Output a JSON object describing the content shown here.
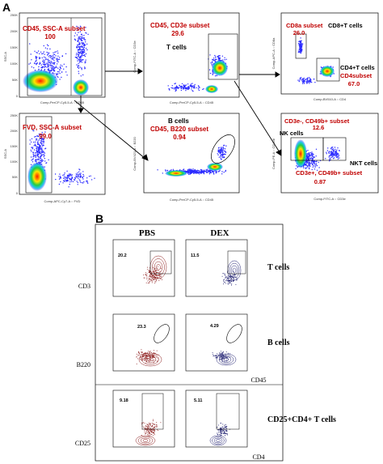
{
  "panel_a": {
    "letter": "A",
    "plots": [
      {
        "gate_label": "CD45, SSC-A subset",
        "gate_value": "100",
        "xaxis": "Comp-PerCP-Cy5-5-A :: CD45",
        "yaxis": "SSC-A"
      },
      {
        "gate_label": "FVD, SSC-A subset",
        "gate_value": "99.0",
        "xaxis": "Comp-APC-Cy7-A :: FVD",
        "yaxis": "SSC-A"
      },
      {
        "gate_label": "CD45, CD3e subset",
        "gate_value": "29.6",
        "pop_label": "T cells",
        "xaxis": "Comp-PerCP-Cy5-5-A :: CD45",
        "yaxis": "Comp-FITC-A :: CD3e"
      },
      {
        "gate_label": "B cells",
        "gate_sub": "CD45, B220 subset",
        "gate_value": "0.94",
        "xaxis": "Comp-PerCP-Cy5-5-A :: CD45",
        "yaxis": "Comp-BV421-A :: B220"
      },
      {
        "gate_label": "CD8a subset",
        "gate_value": "26.0",
        "pop_label": "CD8+T cells",
        "pop_label2": "CD4+T cells",
        "gate_label2": "CD4subset",
        "gate_value2": "67.0",
        "xaxis": "Comp-BV510-A :: CD4",
        "yaxis": "Comp-APC-A :: CD8a"
      },
      {
        "gate_label": "CD3e-, CD49b+ subset",
        "gate_value": "12.6",
        "pop_label": "NK cells",
        "pop_label2": "NKT cells",
        "gate_label2": "CD3e+, CD49b+ subset",
        "gate_value2": "0.87",
        "xaxis": "Comp-FITC-A :: CD3e",
        "yaxis": "Comp-PE-A :: CD49b"
      }
    ],
    "y_ticks_ssc": [
      "250K",
      "200K",
      "150K",
      "100K",
      "50K",
      "0"
    ],
    "log_ticks": [
      "-10³",
      "0",
      "10³",
      "10⁴",
      "10⁵"
    ]
  },
  "panel_b": {
    "letter": "B",
    "col_pbs": "PBS",
    "col_dex": "DEX",
    "rows": [
      {
        "label": "T cells",
        "ylabel": "CD3",
        "pbs_value": "20.2",
        "dex_value": "11.5"
      },
      {
        "label": "B cells",
        "ylabel": "B220",
        "pbs_value": "23.3",
        "dex_value": "4.29",
        "xlabel": "CD45"
      },
      {
        "label": "CD25+CD4+ T cells",
        "ylabel": "CD25",
        "pbs_value": "9.18",
        "dex_value": "5.11",
        "xlabel": "CD4"
      }
    ],
    "x_axis_small_a": "Comp-PerCP-Cy5-5-A :: CD45",
    "x_axis_small_c": "Comp-PE-Cy7-A :: CD4"
  },
  "colors": {
    "gate_text": "#c00000",
    "pbs": "#8b1a1a",
    "dex": "#1a1a6e",
    "density_hot": "#ff2a00",
    "density_cold": "#1a1aff"
  }
}
